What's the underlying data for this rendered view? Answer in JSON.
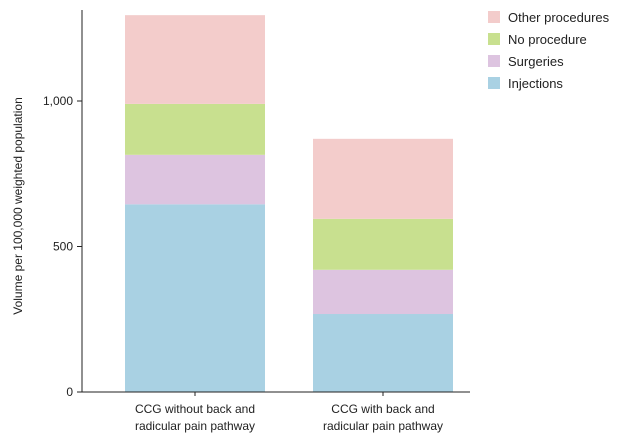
{
  "chart_data": {
    "type": "bar",
    "stacked": true,
    "categories": [
      [
        "CCG without back and",
        "radicular pain pathway"
      ],
      [
        "CCG with back and",
        "radicular pain pathway"
      ]
    ],
    "series": [
      {
        "name": "Injections",
        "color": "#a9d1e3",
        "values": [
          645,
          268
        ]
      },
      {
        "name": "Surgeries",
        "color": "#ddc4e0",
        "values": [
          170,
          152
        ]
      },
      {
        "name": "No procedure",
        "color": "#c8e08f",
        "values": [
          175,
          175
        ]
      },
      {
        "name": "Other procedures",
        "color": "#f3cccb",
        "values": [
          305,
          275
        ]
      }
    ],
    "legend_order": [
      "Other procedures",
      "No procedure",
      "Surgeries",
      "Injections"
    ],
    "title": "",
    "xlabel": "",
    "ylabel": "Volume per 100,000 weighted population",
    "ylim": [
      0,
      1300
    ],
    "yticks": [
      0,
      500,
      1000
    ],
    "ytick_labels": [
      "0",
      "500",
      "1,000"
    ],
    "grid": false,
    "legend_position": "top-right"
  }
}
